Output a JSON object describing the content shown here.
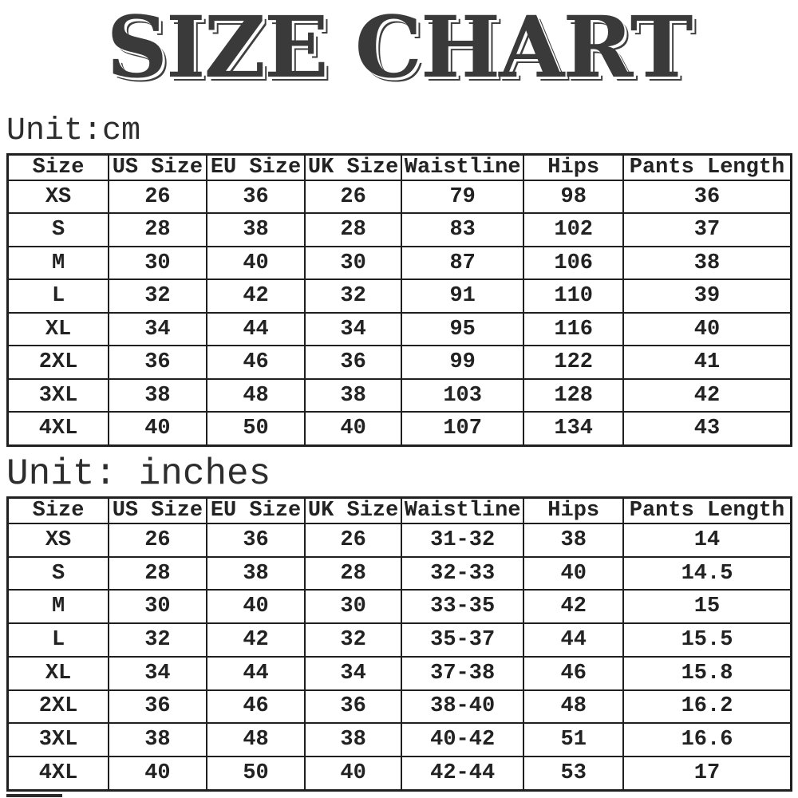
{
  "title": "SIZE CHART",
  "colors": {
    "text": "#222222",
    "border": "#1f1f1f",
    "title": "#3a3a3a",
    "background": "#ffffff"
  },
  "chart_data": [
    {
      "type": "table",
      "unit_label": "Unit:cm",
      "columns": [
        "Size",
        "US Size",
        "EU Size",
        "UK Size",
        "Waistline",
        "Hips",
        "Pants Length"
      ],
      "rows": [
        [
          "XS",
          "26",
          "36",
          "26",
          "79",
          "98",
          "36"
        ],
        [
          "S",
          "28",
          "38",
          "28",
          "83",
          "102",
          "37"
        ],
        [
          "M",
          "30",
          "40",
          "30",
          "87",
          "106",
          "38"
        ],
        [
          "L",
          "32",
          "42",
          "32",
          "91",
          "110",
          "39"
        ],
        [
          "XL",
          "34",
          "44",
          "34",
          "95",
          "116",
          "40"
        ],
        [
          "2XL",
          "36",
          "46",
          "36",
          "99",
          "122",
          "41"
        ],
        [
          "3XL",
          "38",
          "48",
          "38",
          "103",
          "128",
          "42"
        ],
        [
          "4XL",
          "40",
          "50",
          "40",
          "107",
          "134",
          "43"
        ]
      ]
    },
    {
      "type": "table",
      "unit_label": "Unit: inches",
      "columns": [
        "Size",
        "US Size",
        "EU Size",
        "UK Size",
        "Waistline",
        "Hips",
        "Pants Length"
      ],
      "rows": [
        [
          "XS",
          "26",
          "36",
          "26",
          "31-32",
          "38",
          "14"
        ],
        [
          "S",
          "28",
          "38",
          "28",
          "32-33",
          "40",
          "14.5"
        ],
        [
          "M",
          "30",
          "40",
          "30",
          "33-35",
          "42",
          "15"
        ],
        [
          "L",
          "32",
          "42",
          "32",
          "35-37",
          "44",
          "15.5"
        ],
        [
          "XL",
          "34",
          "44",
          "34",
          "37-38",
          "46",
          "15.8"
        ],
        [
          "2XL",
          "36",
          "46",
          "36",
          "38-40",
          "48",
          "16.2"
        ],
        [
          "3XL",
          "38",
          "48",
          "38",
          "40-42",
          "51",
          "16.6"
        ],
        [
          "4XL",
          "40",
          "50",
          "40",
          "42-44",
          "53",
          "17"
        ]
      ]
    }
  ]
}
